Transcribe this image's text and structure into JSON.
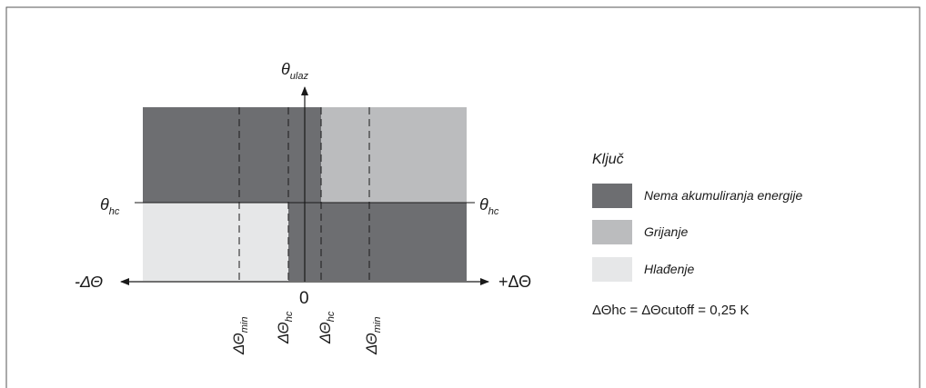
{
  "colors": {
    "dark": "#6d6e71",
    "medium": "#bbbcbe",
    "light": "#e6e7e8",
    "line": "#1a1a1a",
    "frame": "#555555"
  },
  "diagram": {
    "y_axis": {
      "symbol": "θ",
      "subscript": "ulaz"
    },
    "threshold_left": {
      "symbol": "θ",
      "subscript": "hc"
    },
    "threshold_right": {
      "symbol": "θ",
      "subscript": "hc"
    },
    "x_axis_negative": "-ΔΘ",
    "x_axis_positive": "+ΔΘ",
    "origin": "0",
    "ticks": [
      {
        "symbol": "ΔΘ",
        "subscript": "min"
      },
      {
        "symbol": "ΔΘ",
        "subscript": "hc"
      },
      {
        "symbol": "ΔΘ",
        "subscript": "hc"
      },
      {
        "symbol": "ΔΘ",
        "subscript": "min"
      }
    ]
  },
  "legend": {
    "title": "Ključ",
    "items": [
      {
        "label": "Nema akumuliranja energije",
        "color": "#6d6e71"
      },
      {
        "label": "Grijanje",
        "color": "#bbbcbe"
      },
      {
        "label": "Hlađenje",
        "color": "#e6e7e8"
      }
    ],
    "note": "ΔΘhc = ΔΘcutoff = 0,25 K"
  }
}
